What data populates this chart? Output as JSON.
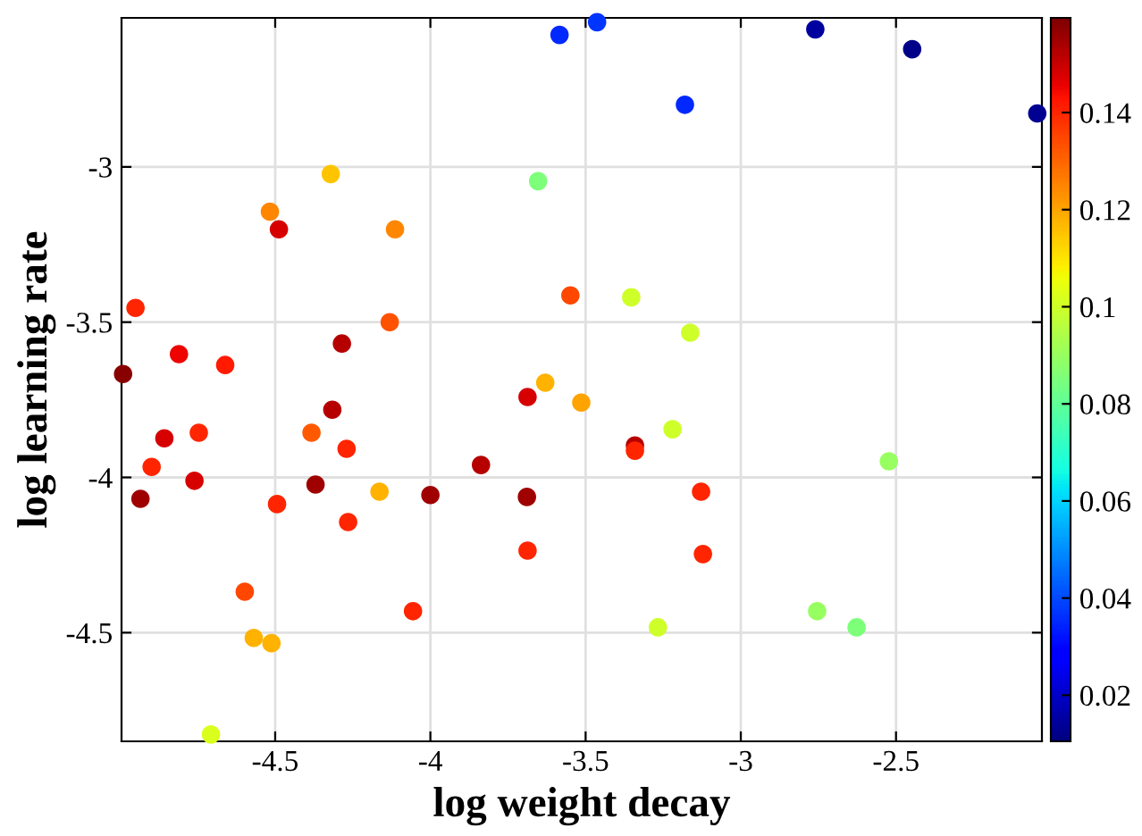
{
  "chart_data": {
    "type": "scatter",
    "xlabel": "log weight decay",
    "ylabel": "log learning rate",
    "xlim": [
      -4.995,
      -2.03
    ],
    "ylim": [
      -4.85,
      -2.52
    ],
    "xticks": [
      -4.5,
      -4,
      -3.5,
      -3,
      -2.5
    ],
    "yticks": [
      -4.5,
      -4,
      -3.5,
      -3
    ],
    "grid": true,
    "marker": "circle",
    "clim": [
      0.0105,
      0.1595
    ],
    "cticks": [
      0.02,
      0.04,
      0.06,
      0.08,
      0.1,
      0.12,
      0.14
    ],
    "x": [
      -3.584,
      -3.463,
      -2.76,
      -2.448,
      -3.18,
      -2.045,
      -4.321,
      -3.653,
      -4.517,
      -4.488,
      -4.114,
      -4.95,
      -3.549,
      -3.353,
      -4.131,
      -3.163,
      -4.285,
      -4.81,
      -4.661,
      -4.99,
      -3.63,
      -3.687,
      -3.514,
      -4.316,
      -3.22,
      -4.746,
      -4.383,
      -4.857,
      -4.27,
      -3.341,
      -3.341,
      -4.898,
      -3.837,
      -2.523,
      -4.76,
      -4.37,
      -3.128,
      -4.164,
      -4.934,
      -4.0,
      -3.689,
      -4.494,
      -4.265,
      -3.122,
      -3.687,
      -4.598,
      -4.056,
      -2.754,
      -2.627,
      -3.267,
      -4.569,
      -4.512,
      -4.707
    ],
    "values": [
      -2.575,
      -2.534,
      -2.557,
      -2.621,
      -2.8,
      -2.828,
      -3.023,
      -3.046,
      -3.144,
      -3.201,
      -3.201,
      -3.454,
      -3.414,
      -3.42,
      -3.5,
      -3.534,
      -3.569,
      -3.603,
      -3.638,
      -3.667,
      -3.695,
      -3.741,
      -3.759,
      -3.782,
      -3.845,
      -3.856,
      -3.856,
      -3.874,
      -3.908,
      -3.897,
      -3.914,
      -3.966,
      -3.96,
      -3.948,
      -4.011,
      -4.023,
      -4.046,
      -4.046,
      -4.069,
      -4.057,
      -4.063,
      -4.086,
      -4.144,
      -4.247,
      -4.236,
      -4.368,
      -4.431,
      -4.431,
      -4.483,
      -4.483,
      -4.517,
      -4.534,
      -4.828
    ],
    "cvalues": [
      0.035,
      0.037,
      0.015,
      0.012,
      0.035,
      0.013,
      0.115,
      0.085,
      0.125,
      0.148,
      0.125,
      0.14,
      0.135,
      0.1,
      0.133,
      0.1,
      0.152,
      0.145,
      0.142,
      0.158,
      0.118,
      0.148,
      0.12,
      0.152,
      0.1,
      0.14,
      0.132,
      0.148,
      0.14,
      0.152,
      0.14,
      0.14,
      0.152,
      0.09,
      0.148,
      0.155,
      0.14,
      0.118,
      0.155,
      0.155,
      0.155,
      0.14,
      0.14,
      0.14,
      0.14,
      0.135,
      0.14,
      0.09,
      0.085,
      0.1,
      0.118,
      0.118,
      0.102
    ]
  }
}
